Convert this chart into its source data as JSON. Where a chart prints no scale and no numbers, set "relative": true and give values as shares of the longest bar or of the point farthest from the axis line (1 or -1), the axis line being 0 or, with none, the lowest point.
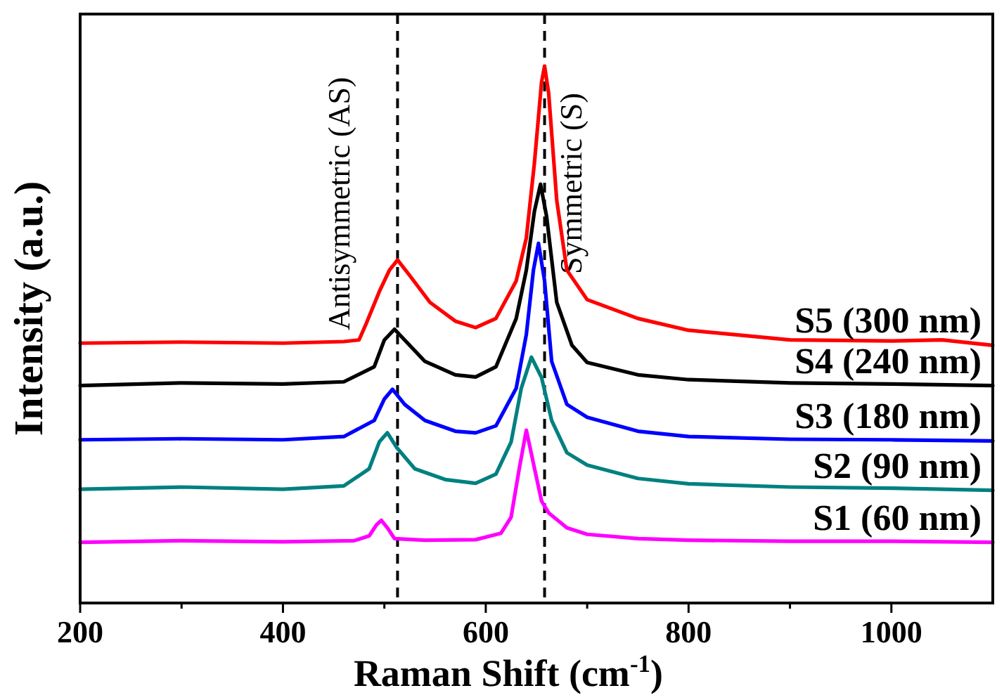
{
  "chart_data": {
    "type": "line",
    "relative": true,
    "xlabel": "Raman Shift (cm$^{-1}$)",
    "ylabel": "Intensity (a.u.)",
    "xlim": [
      200,
      1100
    ],
    "xticks": [
      200,
      {
        "value": 300,
        "label": null
      },
      400,
      {
        "value": 500,
        "label": null
      },
      600,
      {
        "value": 700,
        "label": null
      },
      800,
      {
        "value": 900,
        "label": null
      },
      1000
    ],
    "grid": false,
    "line_style": "solid",
    "marker": "none",
    "ref_lines": [
      {
        "axis": "x",
        "value": 513,
        "label": "Antisymmetric (AS)",
        "color": "#000000",
        "line_style": "dashed"
      },
      {
        "axis": "x",
        "value": 658,
        "label": "Symmetric (S)",
        "color": "#000000",
        "line_style": "dashed"
      }
    ],
    "series": [
      {
        "name": "S5 (300 nm)",
        "color": "#ff0000",
        "x": [
          200,
          300,
          400,
          460,
          475,
          482,
          495,
          505,
          513,
          525,
          545,
          570,
          590,
          610,
          630,
          640,
          648,
          655,
          658,
          662,
          670,
          680,
          700,
          750,
          800,
          900,
          1000,
          1050,
          1100
        ],
        "values": [
          0.484,
          0.486,
          0.484,
          0.487,
          0.49,
          0.52,
          0.58,
          0.62,
          0.639,
          0.61,
          0.56,
          0.525,
          0.513,
          0.53,
          0.6,
          0.68,
          0.82,
          0.97,
          1,
          0.95,
          0.75,
          0.62,
          0.565,
          0.53,
          0.508,
          0.49,
          0.488,
          0.49,
          0.48
        ]
      },
      {
        "name": "S4 (240 nm)",
        "color": "#000000",
        "x": [
          200,
          300,
          400,
          460,
          490,
          500,
          510,
          520,
          540,
          570,
          590,
          610,
          630,
          640,
          648,
          654,
          660,
          670,
          685,
          700,
          750,
          800,
          900,
          1000,
          1100
        ],
        "values": [
          0.405,
          0.41,
          0.408,
          0.412,
          0.44,
          0.49,
          0.51,
          0.49,
          0.45,
          0.425,
          0.421,
          0.44,
          0.53,
          0.62,
          0.73,
          0.78,
          0.72,
          0.56,
          0.48,
          0.448,
          0.425,
          0.416,
          0.41,
          0.408,
          0.405
        ]
      },
      {
        "name": "S3 (180 nm)",
        "color": "#0000ff",
        "x": [
          200,
          300,
          400,
          460,
          490,
          500,
          508,
          520,
          540,
          570,
          590,
          610,
          630,
          640,
          647,
          652,
          658,
          665,
          680,
          700,
          750,
          800,
          900,
          1000,
          1100
        ],
        "values": [
          0.304,
          0.306,
          0.304,
          0.31,
          0.34,
          0.38,
          0.398,
          0.37,
          0.34,
          0.32,
          0.317,
          0.33,
          0.4,
          0.5,
          0.62,
          0.67,
          0.6,
          0.45,
          0.37,
          0.346,
          0.32,
          0.31,
          0.305,
          0.304,
          0.302
        ]
      },
      {
        "name": "S2 (90 nm)",
        "color": "#008080",
        "x": [
          200,
          300,
          400,
          460,
          485,
          495,
          503,
          512,
          530,
          560,
          590,
          610,
          625,
          635,
          645,
          655,
          665,
          680,
          700,
          750,
          800,
          900,
          1000,
          1100
        ],
        "values": [
          0.212,
          0.216,
          0.212,
          0.218,
          0.25,
          0.3,
          0.317,
          0.29,
          0.25,
          0.23,
          0.223,
          0.24,
          0.3,
          0.4,
          0.458,
          0.42,
          0.34,
          0.28,
          0.257,
          0.232,
          0.222,
          0.216,
          0.214,
          0.21
        ]
      },
      {
        "name": "S1 (60 nm)",
        "color": "#ff00ff",
        "x": [
          200,
          300,
          400,
          470,
          485,
          492,
          497,
          503,
          510,
          540,
          590,
          615,
          625,
          633,
          640,
          647,
          655,
          662,
          680,
          700,
          750,
          800,
          900,
          1000,
          1100
        ],
        "values": [
          0.113,
          0.116,
          0.114,
          0.116,
          0.125,
          0.145,
          0.154,
          0.14,
          0.12,
          0.117,
          0.118,
          0.13,
          0.16,
          0.25,
          0.322,
          0.26,
          0.19,
          0.168,
          0.14,
          0.128,
          0.12,
          0.117,
          0.115,
          0.115,
          0.113
        ]
      }
    ]
  }
}
